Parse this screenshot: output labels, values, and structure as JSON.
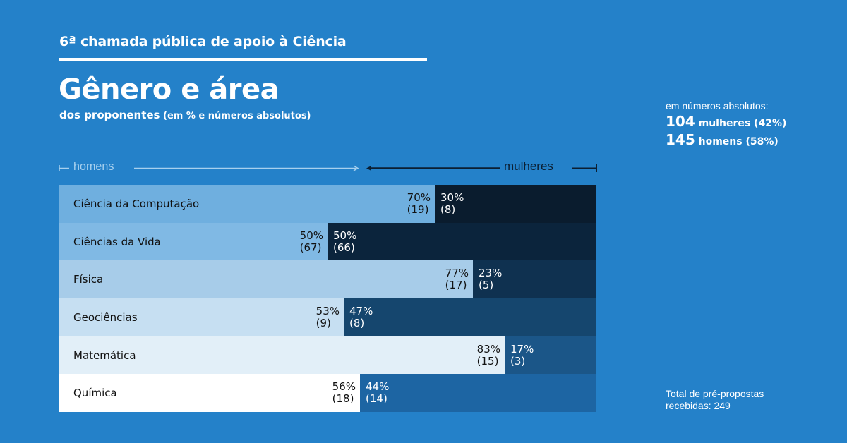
{
  "header": {
    "supertitle": "6ª chamada pública de apoio à Ciência",
    "title": "Gênero e área",
    "subtitle_main": "dos proponentes",
    "subtitle_note": " (em % e números absolutos)"
  },
  "side_stats": {
    "caption": "em números absolutos:",
    "women_count": "104",
    "women_text": " mulheres (42%)",
    "men_count": "145",
    "men_text": " homens (58%)"
  },
  "footer": {
    "total_line1": "Total de pré-propostas",
    "total_line2": "recebidas: 249"
  },
  "legend": {
    "men_label": "homens",
    "women_label": "mulheres",
    "men_color": "#a7d0ee",
    "women_color": "#0b1f33"
  },
  "chart_data": {
    "type": "bar",
    "orientation": "horizontal",
    "stacked": true,
    "title": "Gênero e área",
    "subtitle": "dos proponentes (em % e números absolutos)",
    "categories": [
      "Ciência da Computação",
      "Ciências da Vida",
      "Física",
      "Geociências",
      "Matemática",
      "Química"
    ],
    "series": [
      {
        "name": "homens",
        "values_pct": [
          70,
          50,
          77,
          53,
          83,
          56
        ],
        "values_abs": [
          19,
          67,
          17,
          9,
          15,
          18
        ]
      },
      {
        "name": "mulheres",
        "values_pct": [
          30,
          50,
          23,
          47,
          17,
          44
        ],
        "values_abs": [
          8,
          66,
          5,
          8,
          3,
          14
        ]
      }
    ],
    "xlim": [
      0,
      100
    ],
    "legend_position": "top",
    "row_colors_men": [
      "#6fafdf",
      "#80b9e4",
      "#a7cce9",
      "#c6dff2",
      "#e2eff8",
      "#ffffff"
    ],
    "row_colors_women": [
      "#0a1c2e",
      "#0b243c",
      "#0f3150",
      "#15466e",
      "#1b5688",
      "#1d65a3"
    ]
  }
}
